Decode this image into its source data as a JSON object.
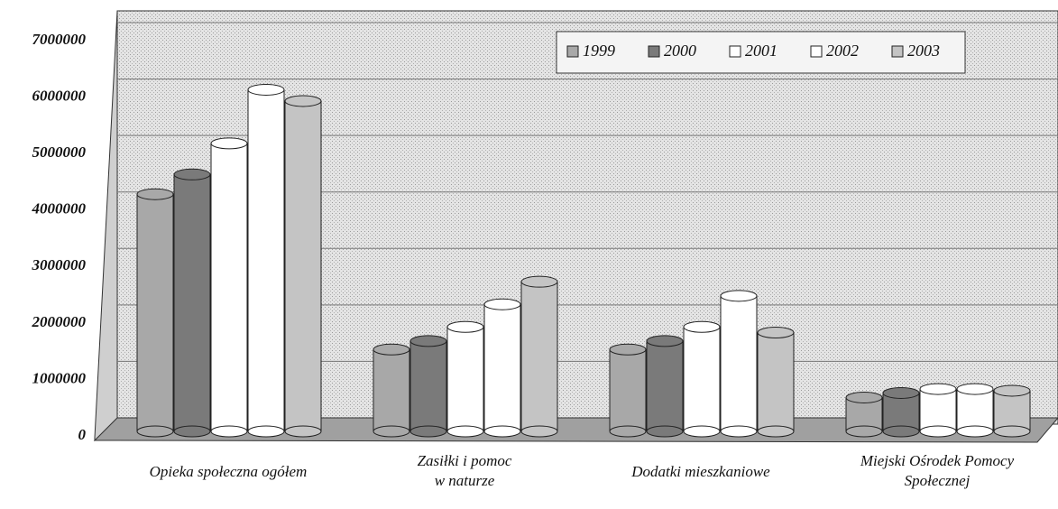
{
  "chart_data": {
    "type": "bar",
    "categories": [
      "Opieka społeczna ogółem",
      "Zasiłki i pomoc\nw naturze",
      "Dodatki mieszkaniowe",
      "Miejski Ośrodek Pomocy\nSpołecznej"
    ],
    "series": [
      {
        "name": "1999",
        "color": "#a8a8a8",
        "values": [
          4200000,
          1450000,
          1450000,
          600000
        ]
      },
      {
        "name": "2000",
        "color": "#7a7a7a",
        "values": [
          4550000,
          1600000,
          1600000,
          680000
        ]
      },
      {
        "name": "2001",
        "color": "#ffffff",
        "values": [
          5100000,
          1850000,
          1850000,
          750000
        ]
      },
      {
        "name": "2002",
        "color": "#ffffff",
        "values": [
          6050000,
          2250000,
          2400000,
          750000
        ]
      },
      {
        "name": "2003",
        "color": "#c4c4c4",
        "values": [
          5850000,
          2650000,
          1750000,
          720000
        ]
      }
    ],
    "ylim": [
      0,
      7000000
    ],
    "yticks": [
      0,
      1000000,
      2000000,
      3000000,
      4000000,
      5000000,
      6000000,
      7000000
    ],
    "grid": true,
    "legend": "top-right"
  }
}
